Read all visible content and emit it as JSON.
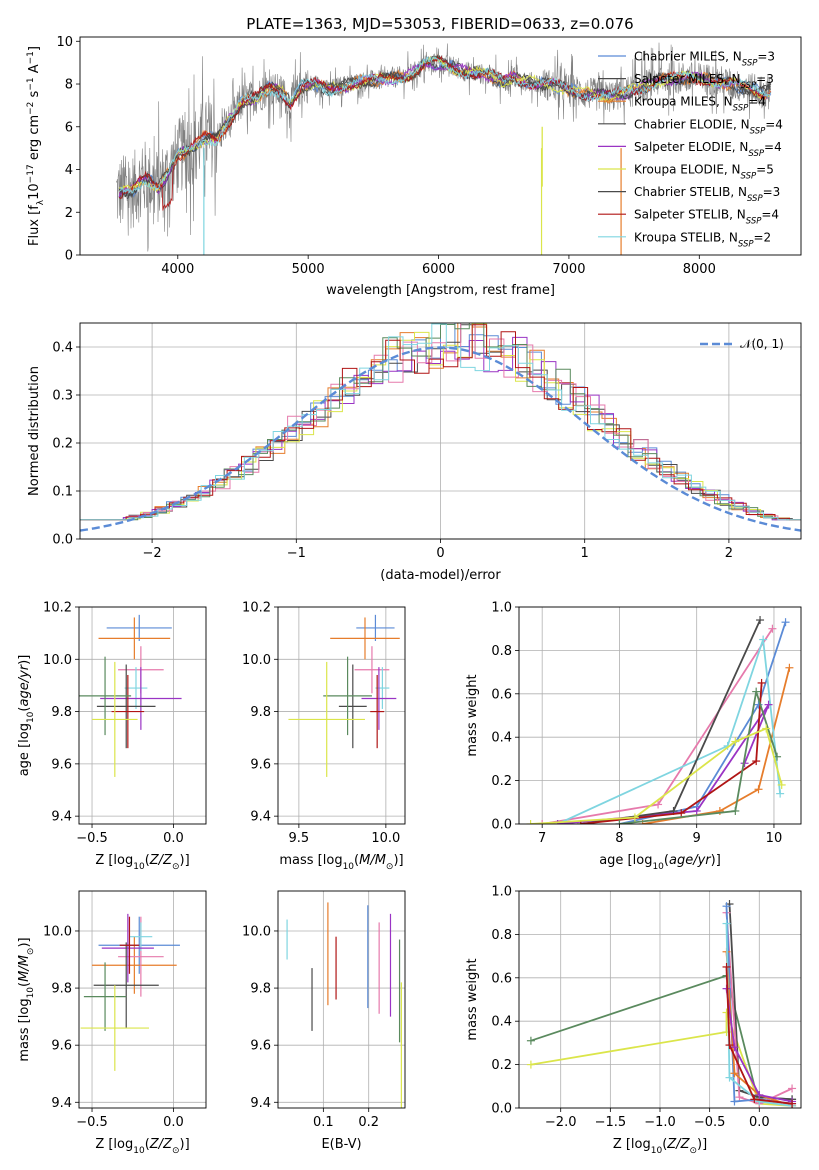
{
  "figure": {
    "title": "PLATE=1363, MJD=53053, FIBERID=0633, z=0.076"
  },
  "colors": {
    "c0": "#5b8bd6",
    "c1": "#e67d2c",
    "c2": "#4a4a4a",
    "c3": "#9a34c4",
    "c4": "#dbe54a",
    "c5": "#e67aac",
    "c6": "#5a8a5e",
    "c7": "#b01515",
    "c8": "#7fd5e0",
    "obs": "#808080",
    "gauss": "#5b8bd6"
  },
  "chart_data": [
    {
      "id": "spectrum",
      "type": "line",
      "xlabel": "wavelength [Angstrom, rest frame]",
      "ylabel": "Flux [f_λ10^-17 erg cm^-2 s^-1 A^-1]",
      "xlim": [
        3250,
        8780
      ],
      "ylim": [
        0,
        10.2
      ],
      "xticks": [
        4000,
        5000,
        6000,
        7000,
        8000
      ],
      "yticks": [
        0,
        2,
        4,
        6,
        8,
        10
      ],
      "legend_position": "top-right",
      "legend": [
        {
          "label": "Chabrier MILES, N",
          "sub": "SSP",
          "tail": "=3",
          "color": "c0"
        },
        {
          "label": "Salpeter MILES, N",
          "sub": "SSP",
          "tail": "=3",
          "color": "c2"
        },
        {
          "label": "Kroupa MILES, N",
          "sub": "SSP",
          "tail": "=4",
          "color": "c1"
        },
        {
          "label": "Chabrier ELODIE, N",
          "sub": "SSP",
          "tail": "=4",
          "color": "c2"
        },
        {
          "label": "Salpeter ELODIE, N",
          "sub": "SSP",
          "tail": "=4",
          "color": "c3"
        },
        {
          "label": "Kroupa ELODIE, N",
          "sub": "SSP",
          "tail": "=5",
          "color": "c4"
        },
        {
          "label": "Chabrier STELIB, N",
          "sub": "SSP",
          "tail": "=3",
          "color": "c2"
        },
        {
          "label": "Salpeter STELIB, N",
          "sub": "SSP",
          "tail": "=4",
          "color": "c7"
        },
        {
          "label": "Kroupa STELIB, N",
          "sub": "SSP",
          "tail": "=2",
          "color": "c8"
        }
      ],
      "model_curve": [
        [
          3550,
          2.9
        ],
        [
          3650,
          3.0
        ],
        [
          3750,
          3.6
        ],
        [
          3850,
          3.2
        ],
        [
          3930,
          3.8
        ],
        [
          4000,
          4.6
        ],
        [
          4100,
          5.0
        ],
        [
          4200,
          5.5
        ],
        [
          4300,
          5.4
        ],
        [
          4400,
          6.3
        ],
        [
          4500,
          7.2
        ],
        [
          4600,
          7.4
        ],
        [
          4700,
          7.8
        ],
        [
          4800,
          7.6
        ],
        [
          4862,
          7.1
        ],
        [
          4950,
          7.9
        ],
        [
          5050,
          8.0
        ],
        [
          5150,
          7.7
        ],
        [
          5250,
          7.9
        ],
        [
          5400,
          8.1
        ],
        [
          5600,
          8.2
        ],
        [
          5800,
          8.5
        ],
        [
          5900,
          8.9
        ],
        [
          6000,
          9.0
        ],
        [
          6100,
          8.8
        ],
        [
          6200,
          8.6
        ],
        [
          6300,
          8.5
        ],
        [
          6400,
          8.4
        ],
        [
          6500,
          8.1
        ],
        [
          6560,
          8.3
        ],
        [
          6700,
          8.1
        ],
        [
          6900,
          7.9
        ],
        [
          7100,
          7.6
        ],
        [
          7300,
          7.4
        ],
        [
          7500,
          7.7
        ],
        [
          7700,
          8.2
        ],
        [
          7900,
          8.3
        ],
        [
          8100,
          8.2
        ],
        [
          8300,
          7.9
        ],
        [
          8500,
          7.6
        ],
        [
          8550,
          7.7
        ]
      ]
    },
    {
      "id": "residuals",
      "type": "histogram",
      "xlabel": "(data-model)/error",
      "ylabel": "Normed distribution",
      "xlim": [
        -2.5,
        2.5
      ],
      "ylim": [
        0,
        0.45
      ],
      "xticks": [
        -2,
        -1,
        0,
        1,
        2
      ],
      "yticks": [
        0.0,
        0.1,
        0.2,
        0.3,
        0.4
      ],
      "legend_position": "top-right",
      "legend": [
        {
          "label": "𝒩(0, 1)",
          "color": "gauss"
        }
      ]
    },
    {
      "id": "age_vs_Z",
      "type": "errorbar",
      "xlabel": "Z [log10(Z/Z☉)]",
      "ylabel": "age [log10(age/yr)]",
      "xlim": [
        -0.58,
        0.2
      ],
      "ylim": [
        9.37,
        10.2
      ],
      "xticks": [
        -0.5,
        0.0
      ],
      "yticks": [
        9.4,
        9.6,
        9.8,
        10.0,
        10.2
      ],
      "points": [
        {
          "c": "c0",
          "x": -0.21,
          "xe": 0.2,
          "y": 10.12,
          "ye": 0.05
        },
        {
          "c": "c1",
          "x": -0.24,
          "xe": 0.22,
          "y": 10.08,
          "ye": 0.08
        },
        {
          "c": "c5",
          "x": -0.2,
          "xe": 0.14,
          "y": 9.96,
          "ye": 0.09
        },
        {
          "c": "c8",
          "x": -0.23,
          "xe": 0.07,
          "y": 9.89,
          "ye": 0.08
        },
        {
          "c": "c3",
          "x": -0.2,
          "xe": 0.25,
          "y": 9.85,
          "ye": 0.12
        },
        {
          "c": "c2",
          "x": -0.29,
          "xe": 0.18,
          "y": 9.82,
          "ye": 0.16
        },
        {
          "c": "c7",
          "x": -0.28,
          "xe": 0.1,
          "y": 9.8,
          "ye": 0.14
        },
        {
          "c": "c6",
          "x": -0.42,
          "xe": 0.16,
          "y": 9.86,
          "ye": 0.15
        },
        {
          "c": "c4",
          "x": -0.36,
          "xe": 0.14,
          "y": 9.77,
          "ye": 0.22
        }
      ]
    },
    {
      "id": "age_vs_mass",
      "type": "errorbar",
      "xlabel": "mass [log10(M/M☉)]",
      "ylabel": "",
      "xlim": [
        9.38,
        10.11
      ],
      "ylim": [
        9.37,
        10.2
      ],
      "xticks": [
        9.5,
        10.0
      ],
      "yticks": [
        9.4,
        9.6,
        9.8,
        10.0,
        10.2
      ],
      "points": [
        {
          "c": "c0",
          "x": 9.94,
          "xe": 0.11,
          "y": 10.12,
          "ye": 0.05
        },
        {
          "c": "c1",
          "x": 9.88,
          "xe": 0.2,
          "y": 10.08,
          "ye": 0.08
        },
        {
          "c": "c5",
          "x": 9.92,
          "xe": 0.1,
          "y": 9.96,
          "ye": 0.09
        },
        {
          "c": "c8",
          "x": 9.98,
          "xe": 0.04,
          "y": 9.89,
          "ye": 0.08
        },
        {
          "c": "c3",
          "x": 9.96,
          "xe": 0.1,
          "y": 9.85,
          "ye": 0.12
        },
        {
          "c": "c2",
          "x": 9.81,
          "xe": 0.08,
          "y": 9.82,
          "ye": 0.16
        },
        {
          "c": "c7",
          "x": 9.95,
          "xe": 0.04,
          "y": 9.8,
          "ye": 0.14
        },
        {
          "c": "c6",
          "x": 9.78,
          "xe": 0.14,
          "y": 9.86,
          "ye": 0.15
        },
        {
          "c": "c4",
          "x": 9.66,
          "xe": 0.22,
          "y": 9.77,
          "ye": 0.22
        }
      ]
    },
    {
      "id": "massweight_vs_age",
      "type": "line",
      "xlabel": "age [log10(age/yr)]",
      "ylabel": "mass weight",
      "xlim": [
        6.7,
        10.35
      ],
      "ylim": [
        0,
        1.0
      ],
      "xticks": [
        7,
        8,
        9,
        10
      ],
      "yticks": [
        0.0,
        0.2,
        0.4,
        0.6,
        0.8,
        1.0
      ],
      "series": [
        {
          "c": "c0",
          "pts": [
            [
              8.0,
              0.0
            ],
            [
              9.0,
              0.08
            ],
            [
              9.8,
              0.55
            ],
            [
              10.15,
              0.93
            ]
          ]
        },
        {
          "c": "c1",
          "pts": [
            [
              8.3,
              0.0
            ],
            [
              9.3,
              0.06
            ],
            [
              9.8,
              0.16
            ],
            [
              10.2,
              0.72
            ]
          ]
        },
        {
          "c": "c5",
          "pts": [
            [
              7.0,
              0.0
            ],
            [
              8.5,
              0.09
            ],
            [
              9.98,
              0.9
            ]
          ]
        },
        {
          "c": "c8",
          "pts": [
            [
              7.2,
              0.0
            ],
            [
              9.4,
              0.36
            ],
            [
              9.86,
              0.85
            ],
            [
              10.08,
              0.14
            ]
          ]
        },
        {
          "c": "c3",
          "pts": [
            [
              7.2,
              0.0
            ],
            [
              9.0,
              0.06
            ],
            [
              9.93,
              0.55
            ],
            [
              9.62,
              0.28
            ]
          ]
        },
        {
          "c": "c2",
          "pts": [
            [
              7.5,
              0.0
            ],
            [
              8.7,
              0.06
            ],
            [
              9.82,
              0.94
            ]
          ]
        },
        {
          "c": "c7",
          "pts": [
            [
              7.5,
              0.0
            ],
            [
              8.8,
              0.05
            ],
            [
              9.77,
              0.29
            ],
            [
              9.84,
              0.65
            ]
          ]
        },
        {
          "c": "c6",
          "pts": [
            [
              8.0,
              0.0
            ],
            [
              9.5,
              0.06
            ],
            [
              9.77,
              0.61
            ],
            [
              10.04,
              0.31
            ]
          ]
        },
        {
          "c": "c4",
          "pts": [
            [
              6.85,
              0.0
            ],
            [
              8.2,
              0.03
            ],
            [
              9.5,
              0.38
            ],
            [
              9.9,
              0.44
            ],
            [
              10.1,
              0.18
            ]
          ]
        }
      ]
    },
    {
      "id": "mass_vs_Z",
      "type": "errorbar",
      "xlabel": "Z [log10(Z/Z☉)]",
      "ylabel": "mass [log10(M/M☉)]",
      "xlim": [
        -0.58,
        0.2
      ],
      "ylim": [
        9.38,
        10.14
      ],
      "xticks": [
        -0.5,
        0.0
      ],
      "yticks": [
        9.4,
        9.6,
        9.8,
        10.0
      ],
      "points": [
        {
          "c": "c0",
          "x": -0.21,
          "xe": 0.25,
          "y": 9.95,
          "ye": 0.1
        },
        {
          "c": "c1",
          "x": -0.24,
          "xe": 0.26,
          "y": 9.88,
          "ye": 0.1
        },
        {
          "c": "c5",
          "x": -0.2,
          "xe": 0.14,
          "y": 9.91,
          "ye": 0.14
        },
        {
          "c": "c8",
          "x": -0.2,
          "xe": 0.07,
          "y": 9.98,
          "ye": 0.05
        },
        {
          "c": "c3",
          "x": -0.28,
          "xe": 0.16,
          "y": 9.94,
          "ye": 0.12
        },
        {
          "c": "c2",
          "x": -0.29,
          "xe": 0.2,
          "y": 9.81,
          "ye": 0.15
        },
        {
          "c": "c7",
          "x": -0.27,
          "xe": 0.06,
          "y": 9.95,
          "ye": 0.1
        },
        {
          "c": "c6",
          "x": -0.42,
          "xe": 0.13,
          "y": 9.77,
          "ye": 0.12
        },
        {
          "c": "c4",
          "x": -0.36,
          "xe": 0.21,
          "y": 9.66,
          "ye": 0.15
        }
      ]
    },
    {
      "id": "mass_vs_EBV",
      "type": "errorbar",
      "xlabel": "E(B-V)",
      "ylabel": "",
      "xlim": [
        0.0,
        0.28
      ],
      "ylim": [
        9.38,
        10.14
      ],
      "xticks": [
        0.1,
        0.2
      ],
      "yticks": [
        9.4,
        9.6,
        9.8,
        10.0
      ],
      "points": [
        {
          "c": "c8",
          "x": 0.02,
          "xe": 0,
          "y": 9.97,
          "ye": 0.07
        },
        {
          "c": "c2",
          "x": 0.075,
          "xe": 0,
          "y": 9.76,
          "ye": 0.11
        },
        {
          "c": "c1",
          "x": 0.11,
          "xe": 0,
          "y": 9.92,
          "ye": 0.18
        },
        {
          "c": "c7",
          "x": 0.128,
          "xe": 0,
          "y": 9.87,
          "ye": 0.11
        },
        {
          "c": "c0",
          "x": 0.198,
          "xe": 0,
          "y": 9.91,
          "ye": 0.18
        },
        {
          "c": "c5",
          "x": 0.223,
          "xe": 0,
          "y": 9.87,
          "ye": 0.16
        },
        {
          "c": "c3",
          "x": 0.248,
          "xe": 0,
          "y": 9.88,
          "ye": 0.18
        },
        {
          "c": "c6",
          "x": 0.268,
          "xe": 0,
          "y": 9.79,
          "ye": 0.18
        },
        {
          "c": "c4",
          "x": 0.272,
          "xe": 0,
          "y": 9.6,
          "ye": 0.22
        }
      ]
    },
    {
      "id": "massweight_vs_Z",
      "type": "line",
      "xlabel": "Z [log10(Z/Z☉)]",
      "ylabel": "mass weight",
      "xlim": [
        -2.42,
        0.42
      ],
      "ylim": [
        0,
        1.0
      ],
      "xticks": [
        -2.0,
        -1.5,
        -1.0,
        -0.5,
        0.0
      ],
      "yticks": [
        0.0,
        0.2,
        0.4,
        0.6,
        0.8,
        1.0
      ],
      "series": [
        {
          "c": "c6",
          "pts": [
            [
              -2.3,
              0.31
            ],
            [
              -0.33,
              0.61
            ],
            [
              -0.02,
              0.05
            ],
            [
              0.33,
              0.04
            ]
          ]
        },
        {
          "c": "c4",
          "pts": [
            [
              -2.3,
              0.2
            ],
            [
              -0.33,
              0.35
            ],
            [
              -0.33,
              0.44
            ],
            [
              0.0,
              0.02
            ],
            [
              0.33,
              0.01
            ]
          ]
        },
        {
          "c": "c2",
          "pts": [
            [
              -0.3,
              0.94
            ],
            [
              -0.2,
              0.08
            ],
            [
              0.0,
              0.05
            ],
            [
              0.33,
              0.04
            ]
          ]
        },
        {
          "c": "c5",
          "pts": [
            [
              -0.33,
              0.9
            ],
            [
              -0.2,
              0.05
            ],
            [
              0.0,
              0.02
            ],
            [
              0.33,
              0.09
            ]
          ]
        },
        {
          "c": "c0",
          "pts": [
            [
              -0.33,
              0.93
            ],
            [
              -0.25,
              0.03
            ],
            [
              0.0,
              0.04
            ],
            [
              0.33,
              0.02
            ]
          ]
        },
        {
          "c": "c1",
          "pts": [
            [
              -0.33,
              0.72
            ],
            [
              -0.25,
              0.16
            ],
            [
              0.0,
              0.06
            ],
            [
              0.33,
              0.01
            ]
          ]
        },
        {
          "c": "c8",
          "pts": [
            [
              -0.33,
              0.85
            ],
            [
              -0.3,
              0.14
            ],
            [
              0.0,
              0.03
            ],
            [
              0.33,
              0.01
            ]
          ]
        },
        {
          "c": "c3",
          "pts": [
            [
              -0.33,
              0.55
            ],
            [
              -0.25,
              0.28
            ],
            [
              0.0,
              0.06
            ],
            [
              0.33,
              0.03
            ]
          ]
        },
        {
          "c": "c7",
          "pts": [
            [
              -0.33,
              0.65
            ],
            [
              -0.3,
              0.29
            ],
            [
              -0.05,
              0.04
            ],
            [
              0.33,
              0.02
            ]
          ]
        }
      ]
    }
  ]
}
